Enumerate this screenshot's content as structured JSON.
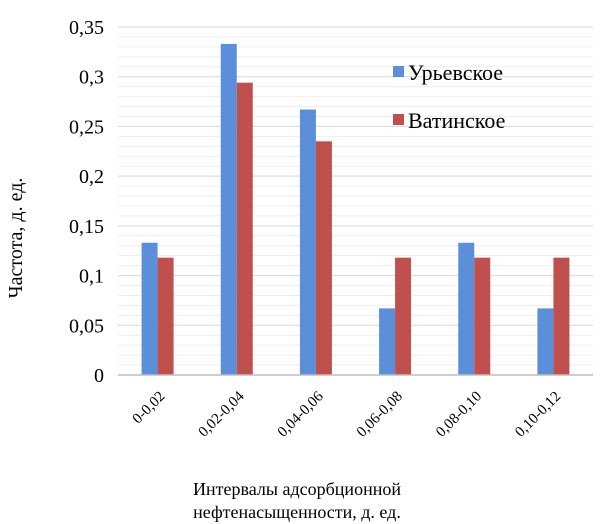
{
  "chart_data": {
    "type": "bar",
    "categories": [
      "0-0,02",
      "0,02-0,04",
      "0,04-0,06",
      "0,06-0,08",
      "0,08-0,10",
      "0,10-0,12"
    ],
    "series": [
      {
        "name": "Урьевское",
        "color": "#5B8FD9",
        "values": [
          0.133,
          0.333,
          0.267,
          0.067,
          0.133,
          0.067
        ]
      },
      {
        "name": "Ватинское",
        "color": "#C0504D",
        "values": [
          0.118,
          0.294,
          0.235,
          0.118,
          0.118,
          0.118
        ]
      }
    ],
    "ylim": [
      0,
      0.35
    ],
    "yticks": [
      0,
      0.05,
      0.1,
      0.15,
      0.2,
      0.25,
      0.3,
      0.35
    ],
    "ytick_labels": [
      "0",
      "0,05",
      "0,1",
      "0,15",
      "0,2",
      "0,25",
      "0,3",
      "0,35"
    ],
    "ylabel": "Частота, д. ед.",
    "xlabel_lines": [
      "Интервалы адсорбционной",
      "нефтенасыщенности, д. ед."
    ],
    "legend_position": "top-right",
    "grid": true
  }
}
